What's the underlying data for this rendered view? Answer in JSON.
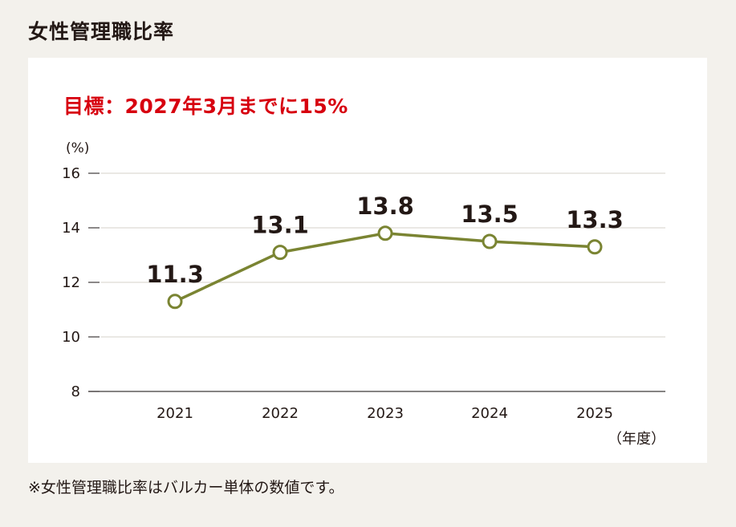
{
  "page": {
    "title": "女性管理職比率",
    "target_text": "目標：2027年3月までに15%",
    "footnote": "※女性管理職比率はバルカー単体の数値です。"
  },
  "chart_data": {
    "type": "line",
    "x": [
      "2021",
      "2022",
      "2023",
      "2024",
      "2025"
    ],
    "series": [
      {
        "values": [
          11.3,
          13.1,
          13.8,
          13.5,
          13.3
        ],
        "data_labels": [
          "11.3",
          "13.1",
          "13.8",
          "13.5",
          "13.3"
        ]
      }
    ],
    "ylabel": "(%)",
    "xlabel": "（年度）",
    "ylim": [
      8,
      16
    ],
    "yticks": [
      8,
      10,
      12,
      14,
      16
    ],
    "grid": true,
    "colors": {
      "line": "#7a8432",
      "grid": "#d4d0c8",
      "axis": "#3e3a39",
      "text": "#231815"
    }
  }
}
